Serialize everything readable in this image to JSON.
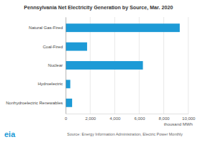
{
  "chart_data": {
    "type": "bar",
    "orientation": "horizontal",
    "title": "Pennsylvania Net Electricity Generation by Source, Mar. 2020",
    "categories": [
      "Natural Gas-Fired",
      "Coal-Fired",
      "Nuclear",
      "Hydroelectric",
      "Nonhydroelectric Renewables"
    ],
    "values": [
      9300,
      1750,
      6300,
      380,
      530
    ],
    "color": "#1d9ad6",
    "xlim": [
      0,
      10000
    ],
    "xticks": [
      0,
      {
        "value": 2000,
        "label": "2,000"
      },
      {
        "value": 4000,
        "label": "4,000"
      },
      {
        "value": 6000,
        "label": "6,000"
      },
      {
        "value": 8000,
        "label": "8,000"
      },
      {
        "value": 10000,
        "label": "10,000"
      }
    ],
    "x_label": "thousand MWh",
    "source": "Source: Energy Information Administration, Electric Power Monthly",
    "logo": "eia",
    "grid": true
  }
}
